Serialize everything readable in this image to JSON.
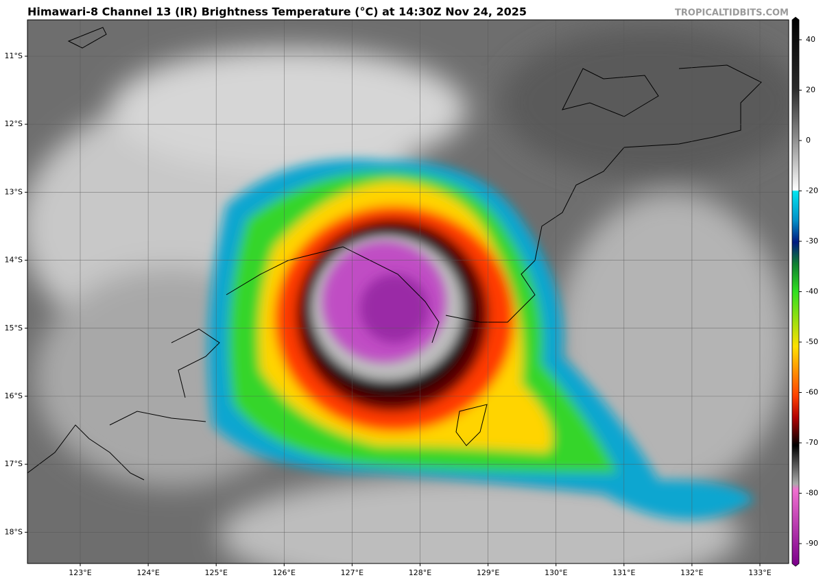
{
  "header": {
    "title": "Himawari-8 Channel 13 (IR) Brightness Temperature (°C) at 14:30Z Nov 24, 2025",
    "watermark": "TROPICALTIDBITS.COM"
  },
  "map": {
    "latitude_labels": [
      "11°S",
      "12°S",
      "13°S",
      "14°S",
      "15°S",
      "16°S",
      "17°S",
      "18°S"
    ],
    "longitude_labels": [
      "123°E",
      "124°E",
      "125°E",
      "126°E",
      "127°E",
      "128°E",
      "129°E",
      "130°E",
      "131°E",
      "132°E",
      "133°E"
    ]
  },
  "colorbar": {
    "ticks": [
      40,
      20,
      0,
      -20,
      -30,
      -40,
      -50,
      -60,
      -70,
      -80,
      -90
    ]
  }
}
